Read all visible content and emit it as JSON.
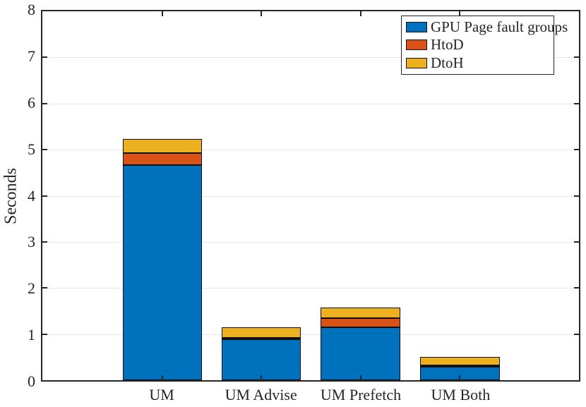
{
  "chart_data": {
    "type": "bar",
    "stacked": true,
    "title": "",
    "xlabel": "",
    "ylabel": "Seconds",
    "ylim": [
      0,
      8
    ],
    "yticks": [
      0,
      1,
      2,
      3,
      4,
      5,
      6,
      7,
      8
    ],
    "ytick_labels": [
      "0",
      "1",
      "2",
      "3",
      "4",
      "5",
      "6",
      "7",
      "8"
    ],
    "categories": [
      "UM",
      "UM Advise",
      "UM Prefetch",
      "UM Both"
    ],
    "series": [
      {
        "name": "GPU Page fault groups",
        "color": "#0072BD",
        "values": [
          4.66,
          0.89,
          1.15,
          0.29
        ]
      },
      {
        "name": "HtoD",
        "color": "#D95319",
        "values": [
          0.27,
          0.02,
          0.19,
          0.01
        ]
      },
      {
        "name": "DtoH",
        "color": "#EDB120",
        "values": [
          0.3,
          0.22,
          0.23,
          0.19
        ]
      }
    ],
    "stack_totals": [
      5.23,
      1.13,
      1.57,
      0.49
    ],
    "grid": "horizontal",
    "grid_color": "#e6e6e6",
    "axis_color": "#262626",
    "bar_edge_color": "#101010",
    "legend_position": "top-right"
  }
}
